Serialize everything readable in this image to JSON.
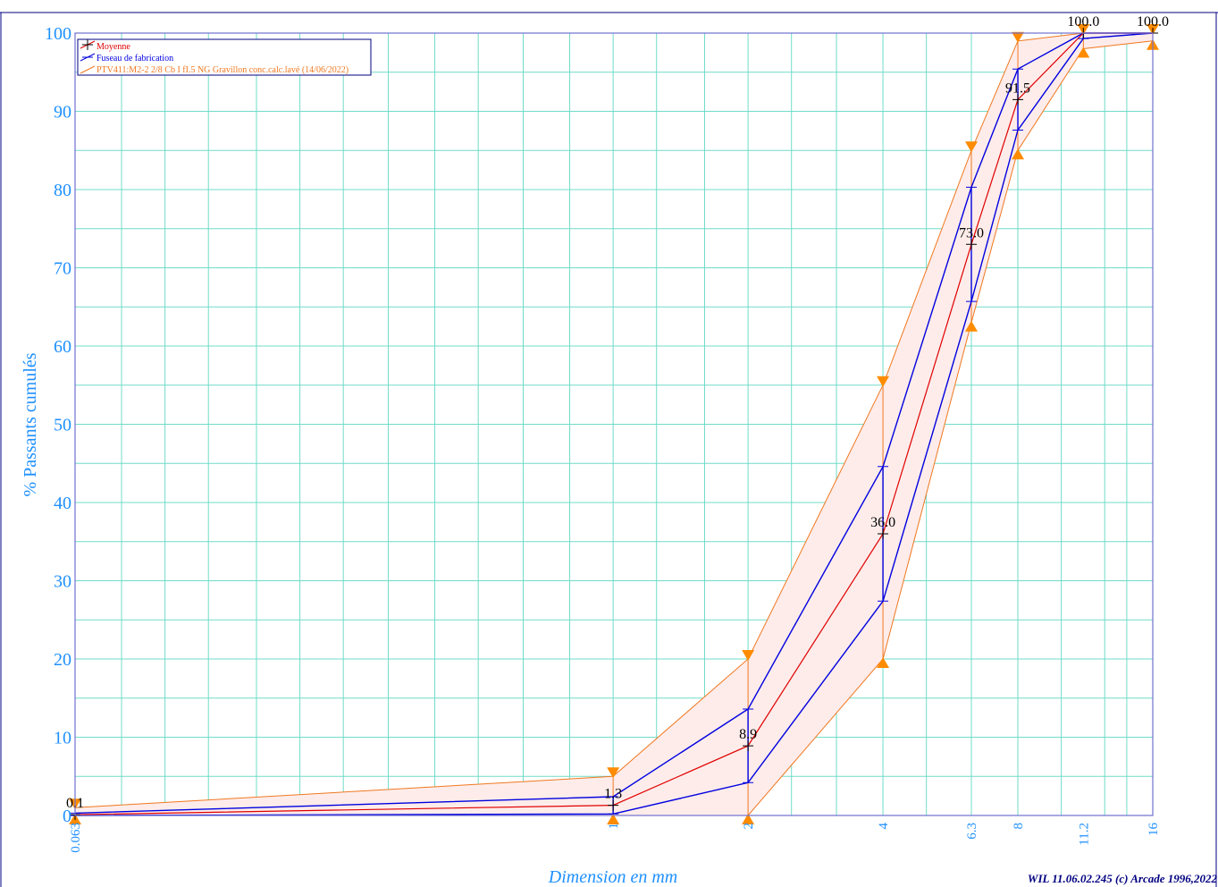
{
  "chart_data": {
    "type": "line",
    "xlabel": "Dimension en mm",
    "ylabel": "% Passants cumulés",
    "footer": "WIL 11.06.02.245 (c) Arcade 1996,2022",
    "x_scale": "log",
    "xlim": [
      0.063,
      16
    ],
    "ylim": [
      0,
      100
    ],
    "grid": true,
    "legend_position": "top-left",
    "x_ticks": [
      {
        "value": 0.063,
        "label": "0.063"
      },
      {
        "value": 1,
        "label": "1"
      },
      {
        "value": 2,
        "label": "2"
      },
      {
        "value": 4,
        "label": "4"
      },
      {
        "value": 6.3,
        "label": "6.3"
      },
      {
        "value": 8,
        "label": "8"
      },
      {
        "value": 11.2,
        "label": "11.2"
      },
      {
        "value": 16,
        "label": "16"
      }
    ],
    "y_ticks": [
      "0",
      "10",
      "20",
      "30",
      "40",
      "50",
      "60",
      "70",
      "80",
      "90",
      "100"
    ],
    "series": [
      {
        "name": "Moyenne",
        "color": "#e00000",
        "x": [
          0.063,
          1,
          2,
          4,
          6.3,
          8,
          11.2,
          16
        ],
        "y": [
          0.1,
          1.3,
          8.9,
          36.0,
          73.0,
          91.5,
          100.0,
          100.0
        ],
        "labels": [
          "0.1",
          "1.3",
          "8.9",
          "36.0",
          "73.0",
          "91.5",
          "100.0",
          "100.0"
        ]
      },
      {
        "name": "Fuseau de fabrication",
        "color": "#0000e0",
        "x": [
          0.063,
          1,
          2,
          4,
          6.3,
          8,
          11.2,
          16
        ],
        "upper": [
          0.3,
          2.4,
          13.6,
          44.6,
          80.3,
          95.4,
          100,
          100
        ],
        "lower": [
          0,
          0.2,
          4.2,
          27.4,
          65.7,
          87.6,
          99.3,
          100
        ]
      },
      {
        "name": "PTV411:M2-2 2/8 Cb I fI.5 NG Gravillon conc.calc.lavé (14/06/2022)",
        "color": "#f07820",
        "fill": "#fdecea",
        "x": [
          0.063,
          1,
          2,
          4,
          6.3,
          8,
          11.2,
          16
        ],
        "upper": [
          1,
          5,
          20,
          55,
          85,
          99,
          100,
          100
        ],
        "lower": [
          0,
          0,
          0,
          20,
          63,
          85,
          98,
          99
        ]
      }
    ]
  }
}
